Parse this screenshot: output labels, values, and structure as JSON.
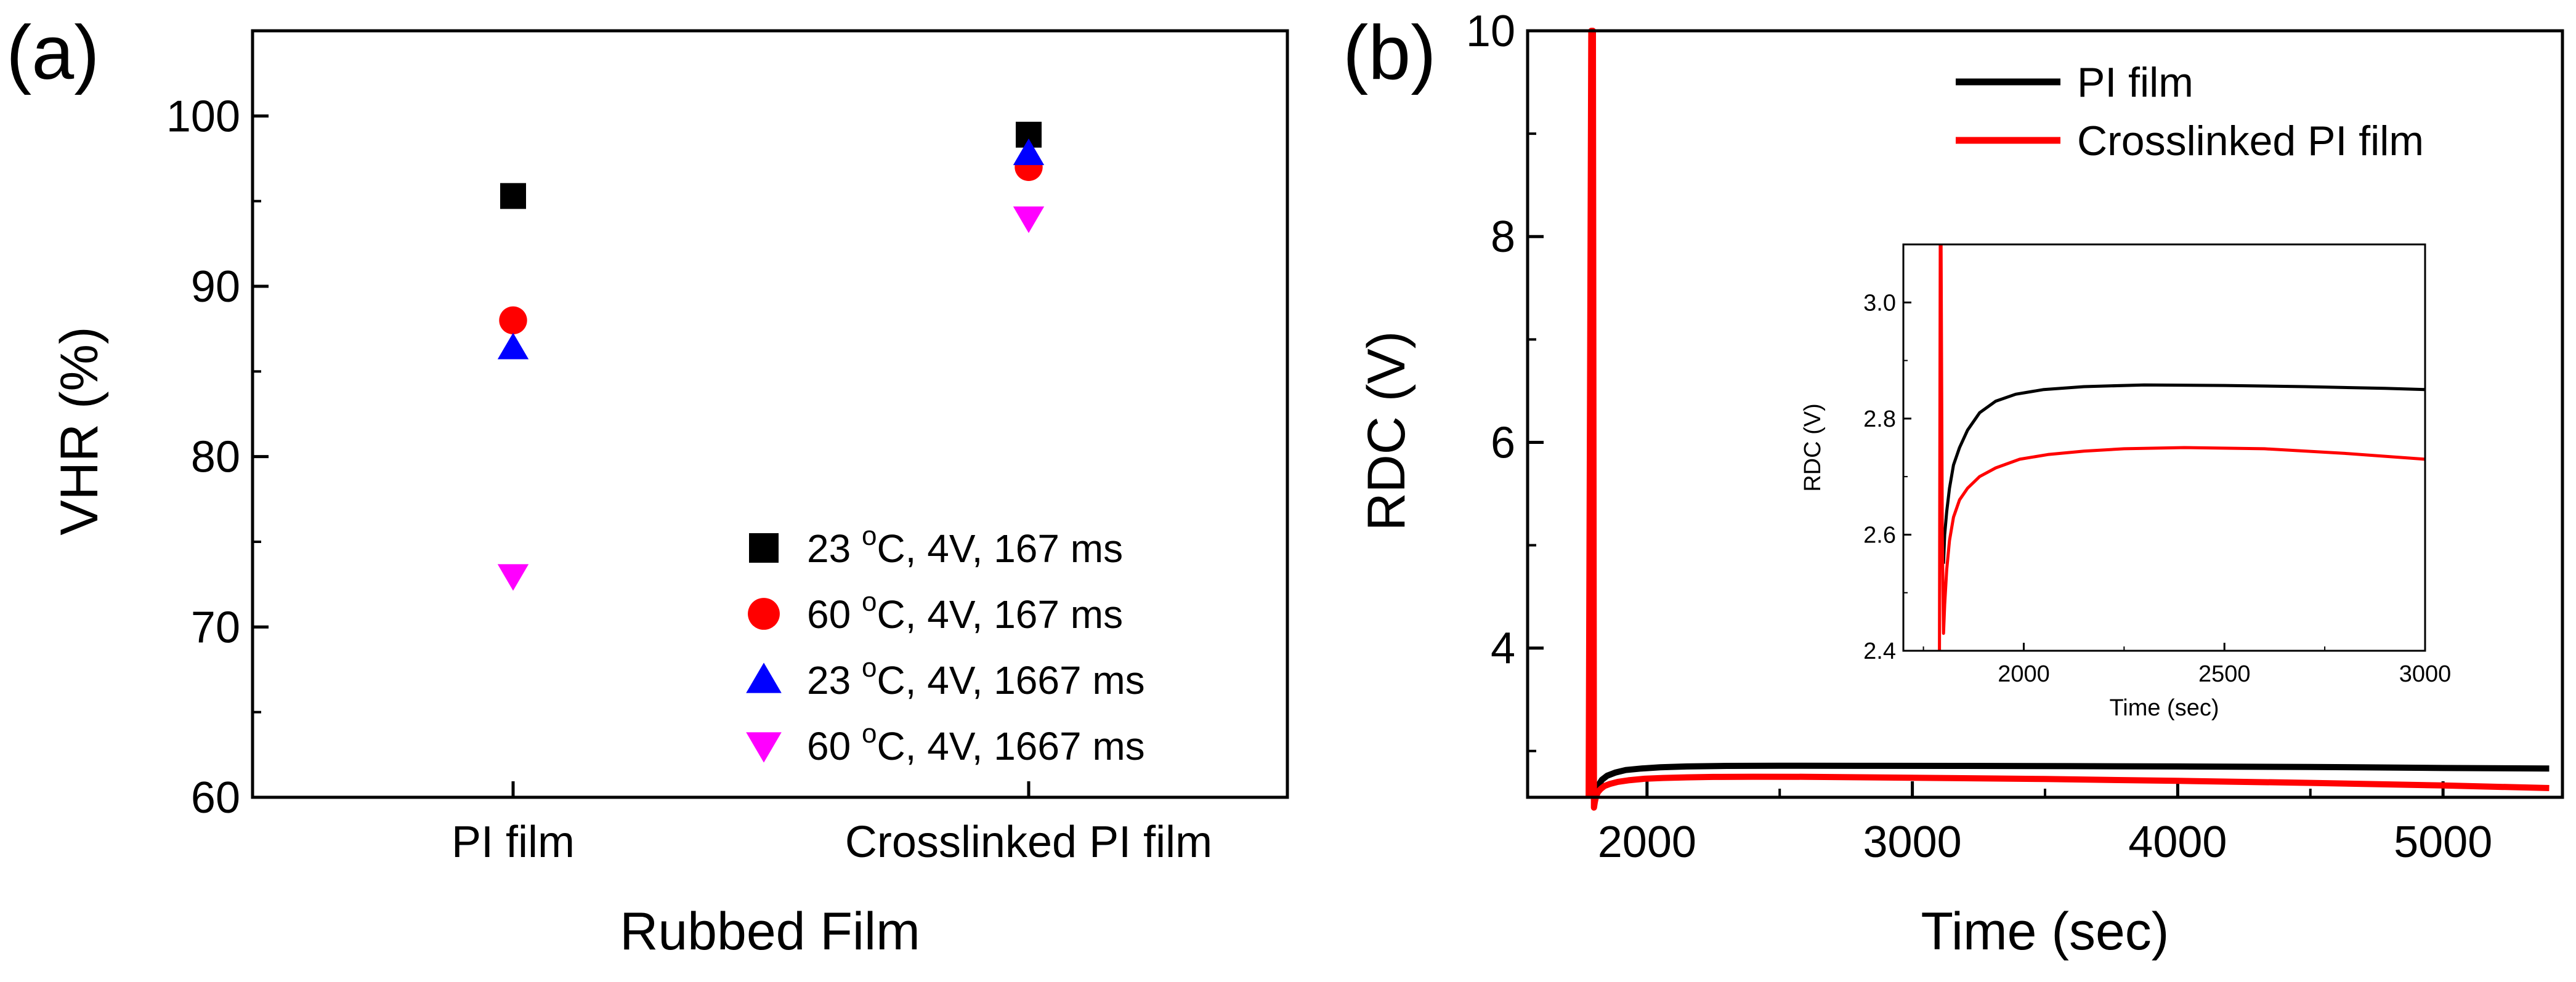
{
  "chart_data": [
    {
      "panel": "(a)",
      "type": "scatter",
      "xlabel": "Rubbed Film",
      "ylabel": "VHR (%)",
      "categories": [
        "PI film",
        "Crosslinked PI film"
      ],
      "ylim": [
        60,
        105
      ],
      "yticks": [
        60,
        70,
        80,
        90,
        100
      ],
      "legend_position": "bottom-right",
      "series": [
        {
          "name": "23 °C, 4V, 167 ms",
          "marker": "square",
          "color": "#000000",
          "values": [
            95.3,
            98.9
          ]
        },
        {
          "name": "60 °C, 4V, 167 ms",
          "marker": "circle",
          "color": "#ff0000",
          "values": [
            88.0,
            97.0
          ]
        },
        {
          "name": "23 °C, 4V, 1667 ms",
          "marker": "triangle-up",
          "color": "#0000ff",
          "values": [
            86.4,
            97.8
          ]
        },
        {
          "name": "60 °C, 4V, 1667 ms",
          "marker": "triangle-down",
          "color": "#ff00ff",
          "values": [
            73.0,
            94.0
          ]
        }
      ],
      "legend": [
        {
          "pre": "23 ",
          "sup": "o",
          "post": "C, 4V, 167 ms"
        },
        {
          "pre": "60 ",
          "sup": "o",
          "post": "C, 4V, 167 ms"
        },
        {
          "pre": "23 ",
          "sup": "o",
          "post": "C, 4V, 1667 ms"
        },
        {
          "pre": "60 ",
          "sup": "o",
          "post": "C, 4V, 1667 ms"
        }
      ]
    },
    {
      "panel": "(b)",
      "type": "line",
      "xlabel": "Time (sec)",
      "ylabel": "RDC (V)",
      "xlim": [
        1550,
        5450
      ],
      "ylim": [
        2.55,
        10
      ],
      "xticks": [
        2000,
        3000,
        4000,
        5000
      ],
      "yticks": [
        4,
        6,
        8,
        10
      ],
      "legend_position": "top-right",
      "series": [
        {
          "name": "PI film",
          "color": "#000000",
          "x": [
            1800,
            1802,
            1806,
            1812,
            1820,
            1830,
            1850,
            1880,
            1920,
            1980,
            2050,
            2150,
            2300,
            2500,
            2800,
            3200,
            3600,
            4000,
            4500,
            5000,
            5400
          ],
          "y": [
            2.55,
            2.55,
            2.58,
            2.63,
            2.68,
            2.72,
            2.76,
            2.79,
            2.815,
            2.83,
            2.842,
            2.85,
            2.855,
            2.857,
            2.856,
            2.855,
            2.853,
            2.85,
            2.845,
            2.835,
            2.83
          ]
        },
        {
          "name": "Crosslinked PI film",
          "color": "#ff0000",
          "x": [
            1780,
            1790,
            1796,
            1800,
            1803,
            1808,
            1815,
            1825,
            1840,
            1860,
            1890,
            1930,
            1990,
            2060,
            2150,
            2250,
            2400,
            2600,
            3000,
            3500,
            4000,
            4500,
            5000,
            5400
          ],
          "y": [
            2.55,
            10,
            10,
            2.45,
            2.5,
            2.56,
            2.6,
            2.63,
            2.66,
            2.68,
            2.7,
            2.715,
            2.73,
            2.738,
            2.744,
            2.748,
            2.75,
            2.749,
            2.74,
            2.728,
            2.71,
            2.69,
            2.665,
            2.64
          ]
        }
      ],
      "inset": {
        "xlabel": "Time (sec)",
        "ylabel": "RDC (V)",
        "xlim": [
          1700,
          3000
        ],
        "ylim": [
          2.4,
          3.1
        ],
        "xticks": [
          2000,
          2500,
          3000
        ],
        "yticks": [
          2.4,
          2.6,
          2.8,
          3.0
        ],
        "ytick_labels": [
          "2.4",
          "2.6",
          "2.8",
          "3.0"
        ],
        "series": [
          {
            "name": "PI film",
            "color": "#000000",
            "x": [
              1800,
              1803,
              1808,
              1815,
              1825,
              1840,
              1860,
              1890,
              1930,
              1980,
              2050,
              2150,
              2300,
              2500,
              2700,
              2900,
              3000
            ],
            "y": [
              2.55,
              2.6,
              2.64,
              2.68,
              2.72,
              2.75,
              2.78,
              2.81,
              2.83,
              2.842,
              2.85,
              2.855,
              2.858,
              2.857,
              2.855,
              2.852,
              2.85
            ]
          },
          {
            "name": "Crosslinked PI film",
            "color": "#ff0000",
            "x": [
              1790,
              1792,
              1794,
              1797,
              1800,
              1803,
              1808,
              1815,
              1825,
              1840,
              1860,
              1890,
              1930,
              1990,
              2060,
              2150,
              2250,
              2400,
              2600,
              2800,
              3000
            ],
            "y": [
              2.4,
              3.1,
              3.1,
              2.6,
              2.43,
              2.48,
              2.54,
              2.59,
              2.63,
              2.66,
              2.68,
              2.7,
              2.715,
              2.73,
              2.738,
              2.744,
              2.748,
              2.75,
              2.748,
              2.74,
              2.73
            ]
          }
        ]
      }
    }
  ]
}
